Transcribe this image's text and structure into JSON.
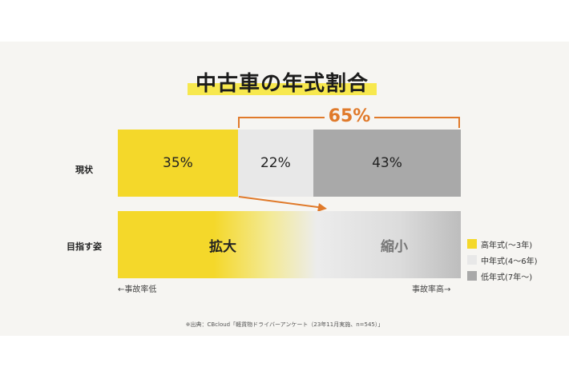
{
  "colors": {
    "new": "#f4d82a",
    "mid": "#e8e8e8",
    "old": "#a9a9a9",
    "accent": "#e07a2b"
  },
  "chart_data": {
    "type": "bar",
    "title": "中古車の年式割合",
    "stacked": true,
    "categories": [
      "現状"
    ],
    "series": [
      {
        "name": "高年式(〜3年)",
        "values": [
          35
        ],
        "label": "35%"
      },
      {
        "name": "中年式(4〜6年)",
        "values": [
          22
        ],
        "label": "22%"
      },
      {
        "name": "低年式(7年〜)",
        "values": [
          43
        ],
        "label": "43%"
      }
    ],
    "bracket_label": "65%",
    "target_row": {
      "label": "目指す姿",
      "left_text": "拡大",
      "right_text": "縮小"
    },
    "axis_left": "←事故率低",
    "axis_right": "事故率高→",
    "legend": [
      "高年式(〜3年)",
      "中年式(4〜6年)",
      "低年式(7年〜)"
    ],
    "legend_position": "right"
  },
  "source": "※出典：CBcloud「軽貨物ドライバーアンケート（23年11月実施、n=545）」"
}
